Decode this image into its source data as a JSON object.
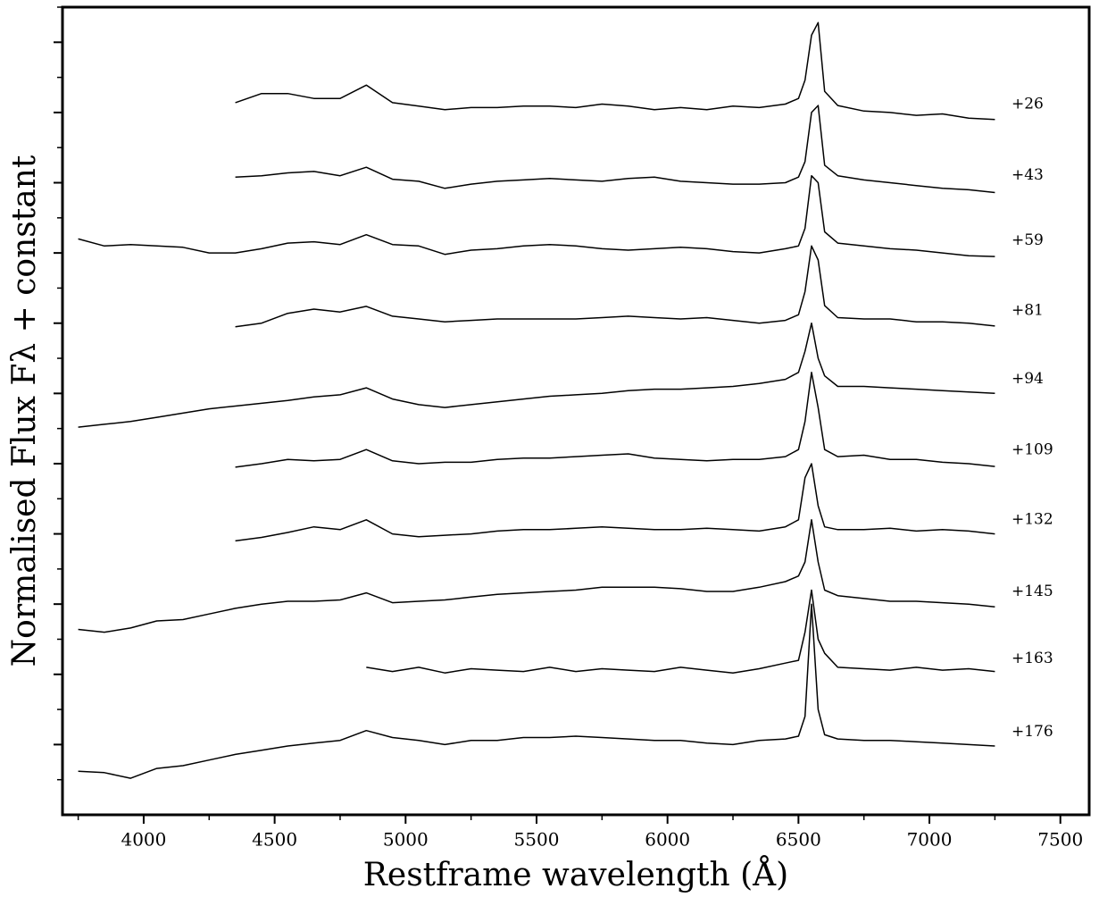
{
  "chart_data": {
    "type": "line",
    "x_label": "Restframe wavelength (Å)",
    "y_label": "Normalised Flux Fλ + constant",
    "xlim": [
      3690,
      7610
    ],
    "xticks": [
      4000,
      4500,
      5000,
      5500,
      6000,
      6500,
      7000,
      7500
    ],
    "ylim": [
      0,
      11.5
    ],
    "yticks": [
      1,
      2,
      3,
      4,
      5,
      6,
      7,
      8,
      9,
      10,
      11
    ],
    "x": [
      3750,
      3850,
      3950,
      4050,
      4150,
      4250,
      4350,
      4450,
      4550,
      4650,
      4750,
      4850,
      4950,
      5050,
      5150,
      5250,
      5350,
      5450,
      5550,
      5650,
      5750,
      5850,
      5950,
      6050,
      6150,
      6250,
      6350,
      6450,
      6500,
      6525,
      6550,
      6575,
      6600,
      6650,
      6750,
      6850,
      6950,
      7050,
      7150,
      7250
    ],
    "series": [
      {
        "name": "+26",
        "color": "#000000",
        "values": [
          null,
          null,
          null,
          null,
          null,
          null,
          10.14,
          10.27,
          10.27,
          10.2,
          10.2,
          10.39,
          10.14,
          10.09,
          10.04,
          10.07,
          10.07,
          10.09,
          10.09,
          10.07,
          10.12,
          10.09,
          10.04,
          10.07,
          10.04,
          10.09,
          10.07,
          10.12,
          10.2,
          10.46,
          11.1,
          11.28,
          10.3,
          10.1,
          10.02,
          10.0,
          9.96,
          9.98,
          9.92,
          9.9
        ]
      },
      {
        "name": "+43",
        "color": "#000000",
        "values": [
          null,
          null,
          null,
          null,
          null,
          null,
          9.08,
          9.1,
          9.14,
          9.16,
          9.1,
          9.22,
          9.05,
          9.02,
          8.92,
          8.98,
          9.02,
          9.04,
          9.06,
          9.04,
          9.02,
          9.06,
          9.08,
          9.02,
          9.0,
          8.98,
          8.98,
          9.0,
          9.08,
          9.3,
          10.0,
          10.1,
          9.25,
          9.1,
          9.04,
          9.0,
          8.96,
          8.92,
          8.9,
          8.86
        ]
      },
      {
        "name": "+59",
        "color": "#000000",
        "values": [
          8.2,
          8.1,
          8.12,
          8.1,
          8.08,
          8.0,
          8.0,
          8.06,
          8.14,
          8.16,
          8.12,
          8.26,
          8.12,
          8.1,
          7.98,
          8.04,
          8.06,
          8.1,
          8.12,
          8.1,
          8.06,
          8.04,
          8.06,
          8.08,
          8.06,
          8.02,
          8.0,
          8.06,
          8.1,
          8.35,
          9.1,
          9.0,
          8.3,
          8.14,
          8.1,
          8.06,
          8.04,
          8.0,
          7.96,
          7.95
        ]
      },
      {
        "name": "+81",
        "color": "#000000",
        "values": [
          null,
          null,
          null,
          null,
          null,
          null,
          6.95,
          7.0,
          7.14,
          7.2,
          7.16,
          7.24,
          7.1,
          7.06,
          7.02,
          7.04,
          7.06,
          7.06,
          7.06,
          7.06,
          7.08,
          7.1,
          7.08,
          7.06,
          7.08,
          7.04,
          7.0,
          7.04,
          7.12,
          7.45,
          8.1,
          7.9,
          7.25,
          7.08,
          7.06,
          7.06,
          7.02,
          7.02,
          7.0,
          6.96
        ]
      },
      {
        "name": "+94",
        "color": "#000000",
        "values": [
          5.52,
          5.56,
          5.6,
          5.66,
          5.72,
          5.78,
          5.82,
          5.86,
          5.9,
          5.95,
          5.98,
          6.08,
          5.92,
          5.84,
          5.8,
          5.84,
          5.88,
          5.92,
          5.96,
          5.98,
          6.0,
          6.04,
          6.06,
          6.06,
          6.08,
          6.1,
          6.14,
          6.2,
          6.3,
          6.6,
          7.0,
          6.5,
          6.25,
          6.1,
          6.1,
          6.08,
          6.06,
          6.04,
          6.02,
          6.0
        ]
      },
      {
        "name": "+109",
        "color": "#000000",
        "values": [
          null,
          null,
          null,
          null,
          null,
          null,
          4.95,
          5.0,
          5.06,
          5.04,
          5.06,
          5.2,
          5.04,
          5.0,
          5.02,
          5.02,
          5.06,
          5.08,
          5.08,
          5.1,
          5.12,
          5.14,
          5.08,
          5.06,
          5.04,
          5.06,
          5.06,
          5.1,
          5.2,
          5.6,
          6.3,
          5.8,
          5.2,
          5.1,
          5.12,
          5.06,
          5.06,
          5.02,
          5.0,
          4.96
        ]
      },
      {
        "name": "+132",
        "color": "#000000",
        "values": [
          null,
          null,
          null,
          null,
          null,
          null,
          3.9,
          3.95,
          4.02,
          4.1,
          4.06,
          4.2,
          4.0,
          3.96,
          3.98,
          4.0,
          4.04,
          4.06,
          4.06,
          4.08,
          4.1,
          4.08,
          4.06,
          4.06,
          4.08,
          4.06,
          4.04,
          4.1,
          4.2,
          4.8,
          5.0,
          4.4,
          4.1,
          4.06,
          4.06,
          4.08,
          4.04,
          4.06,
          4.04,
          4.0
        ]
      },
      {
        "name": "+145",
        "color": "#000000",
        "values": [
          2.64,
          2.6,
          2.66,
          2.76,
          2.78,
          2.86,
          2.94,
          3.0,
          3.04,
          3.04,
          3.06,
          3.16,
          3.02,
          3.04,
          3.06,
          3.1,
          3.14,
          3.16,
          3.18,
          3.2,
          3.24,
          3.24,
          3.24,
          3.22,
          3.18,
          3.18,
          3.24,
          3.32,
          3.4,
          3.6,
          4.2,
          3.6,
          3.2,
          3.12,
          3.08,
          3.04,
          3.04,
          3.02,
          3.0,
          2.96
        ]
      },
      {
        "name": "+163",
        "color": "#000000",
        "values": [
          null,
          null,
          null,
          null,
          null,
          null,
          null,
          null,
          null,
          null,
          null,
          2.1,
          2.04,
          2.1,
          2.02,
          2.08,
          2.06,
          2.04,
          2.1,
          2.04,
          2.08,
          2.06,
          2.04,
          2.1,
          2.06,
          2.02,
          2.08,
          2.16,
          2.2,
          2.6,
          3.2,
          2.5,
          2.3,
          2.1,
          2.08,
          2.06,
          2.1,
          2.06,
          2.08,
          2.04
        ]
      },
      {
        "name": "+176",
        "color": "#000000",
        "values": [
          0.62,
          0.6,
          0.52,
          0.66,
          0.7,
          0.78,
          0.86,
          0.92,
          0.98,
          1.02,
          1.06,
          1.2,
          1.1,
          1.06,
          1.0,
          1.06,
          1.06,
          1.1,
          1.1,
          1.12,
          1.1,
          1.08,
          1.06,
          1.06,
          1.02,
          1.0,
          1.06,
          1.08,
          1.12,
          1.4,
          3.0,
          1.5,
          1.14,
          1.08,
          1.06,
          1.06,
          1.04,
          1.02,
          1.0,
          0.98
        ]
      }
    ]
  }
}
